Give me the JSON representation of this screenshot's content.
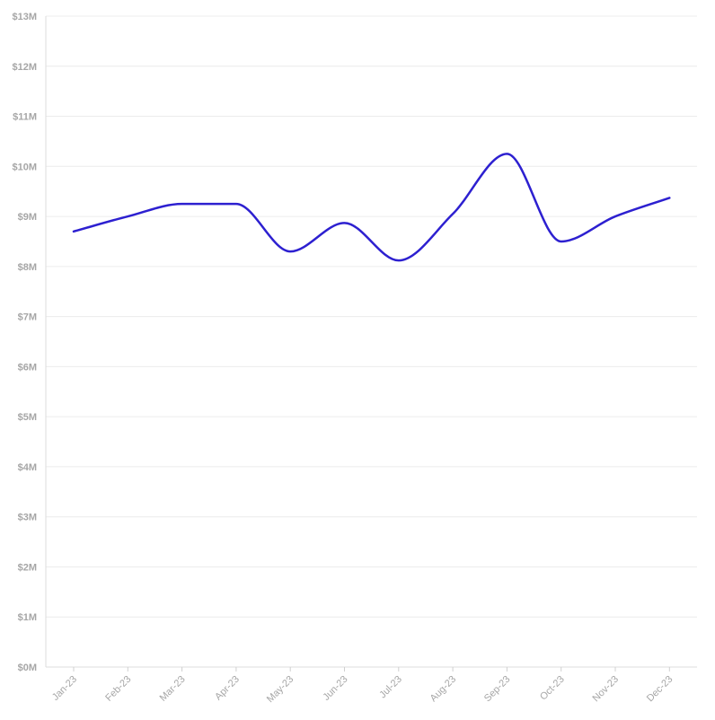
{
  "chart_data": {
    "type": "line",
    "title": "",
    "xlabel": "",
    "ylabel": "",
    "categories": [
      "Jan-23",
      "Feb-23",
      "Mar-23",
      "Apr-23",
      "May-23",
      "Jun-23",
      "Jul-23",
      "Aug-23",
      "Sep-23",
      "Oct-23",
      "Nov-23",
      "Dec-23"
    ],
    "series": [
      {
        "values": [
          8.7,
          9.0,
          9.25,
          9.25,
          8.3,
          8.87,
          8.12,
          9.05,
          10.25,
          8.5,
          9.0,
          9.37
        ],
        "color": "#2d20d0"
      }
    ],
    "ylim": [
      0,
      13
    ],
    "y_ticks": [
      "$0M",
      "$1M",
      "$2M",
      "$3M",
      "$4M",
      "$5M",
      "$6M",
      "$7M",
      "$8M",
      "$9M",
      "$10M",
      "$11M",
      "$12M",
      "$13M"
    ],
    "grid": true,
    "legend": "none",
    "smooth": true
  }
}
